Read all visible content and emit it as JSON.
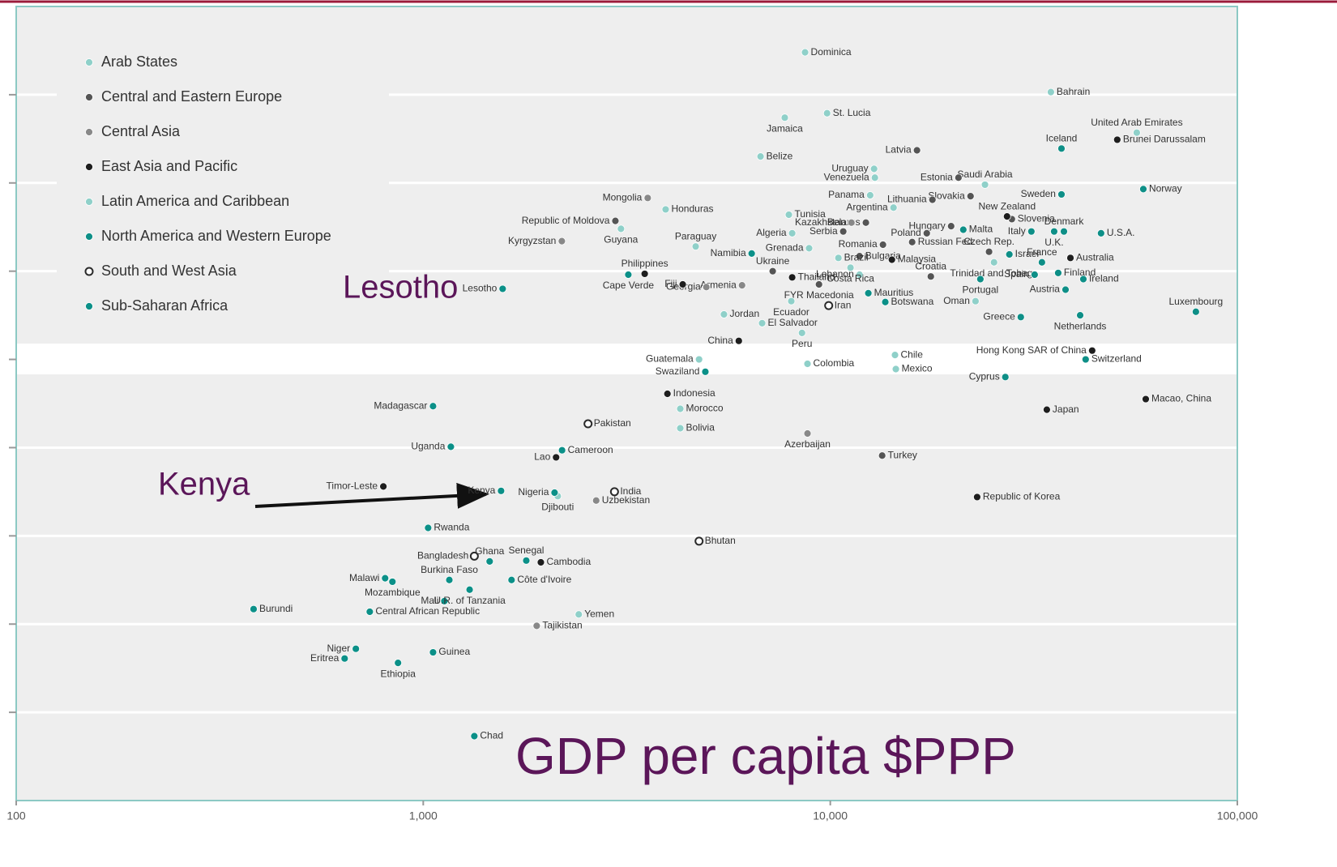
{
  "chart_data": {
    "type": "scatter",
    "xscale": "log",
    "xlim": [
      100,
      100000
    ],
    "ylim": [
      0,
      9
    ],
    "xticks": [
      100,
      {
        "value": 1000,
        "label": "1,000"
      },
      {
        "value": 10000,
        "label": "10,000"
      },
      {
        "value": 100000,
        "label": "100,000"
      }
    ],
    "yticks": [
      1,
      2,
      3,
      4,
      5,
      6,
      7,
      8
    ],
    "grid": true,
    "legend": "upper left",
    "annotations": [
      "Lesotho",
      "Kenya",
      "GDP per capita $PPP"
    ],
    "series": [
      {
        "name": "Arab States",
        "color": "#8fd0c9",
        "marker": "dot",
        "labels": [
          "Bahrain",
          "United Arab Emirates",
          "Saudi Arabia",
          "Tunisia",
          "Algeria",
          "Lebanon",
          "Jordan",
          "Oman",
          "Morocco",
          "Djibouti",
          "Yemen"
        ],
        "x": [
          34830,
          56620,
          23990,
          7910,
          8060,
          11800,
          5480,
          22740,
          4280,
          2140,
          2410
        ],
        "values": [
          8.03,
          7.57,
          6.98,
          6.64,
          6.43,
          5.96,
          5.51,
          5.66,
          4.44,
          3.45,
          2.11
        ]
      },
      {
        "name": "Central and Eastern Europe",
        "color": "#555555",
        "marker": "dot",
        "labels": [
          "Latvia",
          "Estonia",
          "Slovakia",
          "Lithuania",
          "Hungary",
          "Slovenia",
          "Czech Rep.",
          "Poland",
          "Belarus",
          "Serbia",
          "Romania",
          "Bulgaria",
          "Russian Fed.",
          "Croatia",
          "Ukraine",
          "FYR Macedonia",
          "Turkey",
          "Republic of Moldova"
        ],
        "x": [
          16330,
          20650,
          22110,
          17820,
          19810,
          27930,
          24550,
          17260,
          12230,
          10760,
          13470,
          11800,
          15890,
          17660,
          7220,
          9380,
          13410,
          2965
        ],
        "values": [
          7.37,
          7.06,
          6.85,
          6.81,
          6.51,
          6.59,
          6.22,
          6.43,
          6.55,
          6.45,
          6.3,
          6.17,
          6.33,
          5.94,
          6.0,
          5.85,
          3.91,
          6.57
        ]
      },
      {
        "name": "Central Asia",
        "color": "#888888",
        "marker": "dot",
        "labels": [
          "Mongolia",
          "Kyrgyzstan",
          "Kazakhstan",
          "Armenia",
          "Georgia",
          "Azerbaijan",
          "Uzbekistan",
          "Tajikistan"
        ],
        "x": [
          3560,
          2190,
          11270,
          6070,
          4960,
          8790,
          2660,
          1900
        ],
        "values": [
          6.83,
          6.34,
          6.55,
          5.84,
          5.82,
          4.16,
          3.4,
          1.98
        ]
      },
      {
        "name": "East Asia and Pacific",
        "color": "#1e1e1e",
        "marker": "dot",
        "labels": [
          "Brunei Darussalam",
          "New Zealand",
          "Australia",
          "Malaysia",
          "Thailand",
          "Philippines",
          "Fiji",
          "China",
          "Hong Kong SAR of China",
          "Macao, China",
          "Japan",
          "Republic of Korea",
          "Indonesia",
          "Lao",
          "Timor-Leste",
          "Cambodia"
        ],
        "x": [
          50700,
          27180,
          38900,
          14170,
          8060,
          3500,
          4340,
          5960,
          43990,
          59570,
          34040,
          22950,
          3980,
          2120,
          798,
          1945
        ],
        "values": [
          7.49,
          6.62,
          6.15,
          6.13,
          5.93,
          5.97,
          5.85,
          5.21,
          5.1,
          4.55,
          4.43,
          3.44,
          4.61,
          3.89,
          3.56,
          2.7
        ]
      },
      {
        "name": "Latin America and Caribbean",
        "color": "#8fd0c9",
        "marker": "dot",
        "labels": [
          "Dominica",
          "Jamaica",
          "St. Lucia",
          "Belize",
          "Uruguay",
          "Venezuela",
          "Panama",
          "Argentina",
          "Honduras",
          "Guyana",
          "Paraguay",
          "Grenada",
          "Brazil",
          "Ecuador",
          "El Salvador",
          "Peru",
          "Costa Rica",
          "Colombia",
          "Chile",
          "Mexico",
          "Guatemala",
          "Bolivia",
          "Trinidad and Tobago"
        ],
        "x": [
          8670,
          7730,
          9820,
          6740,
          12810,
          12870,
          12530,
          14300,
          3940,
          3060,
          4670,
          8870,
          10470,
          8020,
          6800,
          8520,
          11210,
          8790,
          14420,
          14490,
          4760,
          4280,
          25250
        ],
        "values": [
          8.48,
          7.74,
          7.79,
          7.3,
          7.16,
          7.06,
          6.86,
          6.72,
          6.7,
          6.48,
          6.28,
          6.26,
          6.15,
          5.66,
          5.41,
          5.3,
          6.04,
          4.95,
          5.05,
          4.89,
          5.0,
          4.22,
          6.1
        ]
      },
      {
        "name": "North America and Western Europe",
        "color": "#0e8f87",
        "marker": "dot",
        "labels": [
          "Iceland",
          "Norway",
          "Sweden",
          "Denmark",
          "U.S.A.",
          "Italy",
          "U.K.",
          "France",
          "Finland",
          "Ireland",
          "Spain",
          "Austria",
          "Netherlands",
          "Luxembourg",
          "Switzerland",
          "Portugal",
          "Greece",
          "Cyprus",
          "Malta",
          "Israel"
        ],
        "x": [
          36980,
          58750,
          36980,
          37500,
          46260,
          31190,
          35480,
          33110,
          36300,
          41850,
          31770,
          37840,
          41100,
          79100,
          42400,
          23370,
          29380,
          26920,
          21220,
          27540
        ],
        "values": [
          7.39,
          6.93,
          6.87,
          6.45,
          6.43,
          6.45,
          6.45,
          6.1,
          5.98,
          5.91,
          5.96,
          5.79,
          5.5,
          5.54,
          5.0,
          5.91,
          5.48,
          4.8,
          6.47,
          6.19
        ]
      },
      {
        "name": "South and West Asia",
        "color": "#2a2a2a",
        "marker": "hollow",
        "labels": [
          "Iran",
          "Pakistan",
          "India",
          "Bangladesh",
          "Bhutan"
        ],
        "x": [
          9910,
          2540,
          2950,
          1335,
          4760
        ],
        "values": [
          5.61,
          4.27,
          3.5,
          2.77,
          2.94
        ]
      },
      {
        "name": "Sub-Saharan Africa",
        "color": "#0b9088",
        "marker": "dot",
        "labels": [
          "Lesotho",
          "Madagascar",
          "Uganda",
          "Kenya",
          "Nigeria",
          "Cameroon",
          "Rwanda",
          "Ghana",
          "Senegal",
          "Burkina Faso",
          "Côte d'Ivoire",
          "Malawi",
          "Mozambique",
          "Mali",
          "U.R. of Tanzania",
          "Burundi",
          "Central African Republic",
          "Niger",
          "Eritrea",
          "Ethiopia",
          "Guinea",
          "Chad",
          "Swaziland",
          "Mauritius",
          "Botswana",
          "Namibia",
          "Cape Verde"
        ],
        "x": [
          1567,
          1057,
          1169,
          1553,
          2102,
          2193,
          1028,
          1456,
          1791,
          1159,
          1648,
          806,
          840,
          1127,
          1300,
          383,
          739,
          683,
          641,
          867,
          1057,
          1335,
          4932,
          12400,
          13650,
          6410,
          3190
        ],
        "values": [
          5.8,
          4.47,
          4.01,
          3.51,
          3.49,
          3.97,
          3.09,
          2.71,
          2.72,
          2.5,
          2.5,
          2.52,
          2.48,
          2.26,
          2.39,
          2.17,
          2.14,
          1.72,
          1.61,
          1.56,
          1.68,
          0.73,
          4.86,
          5.75,
          5.65,
          6.2,
          5.96
        ]
      }
    ]
  }
}
